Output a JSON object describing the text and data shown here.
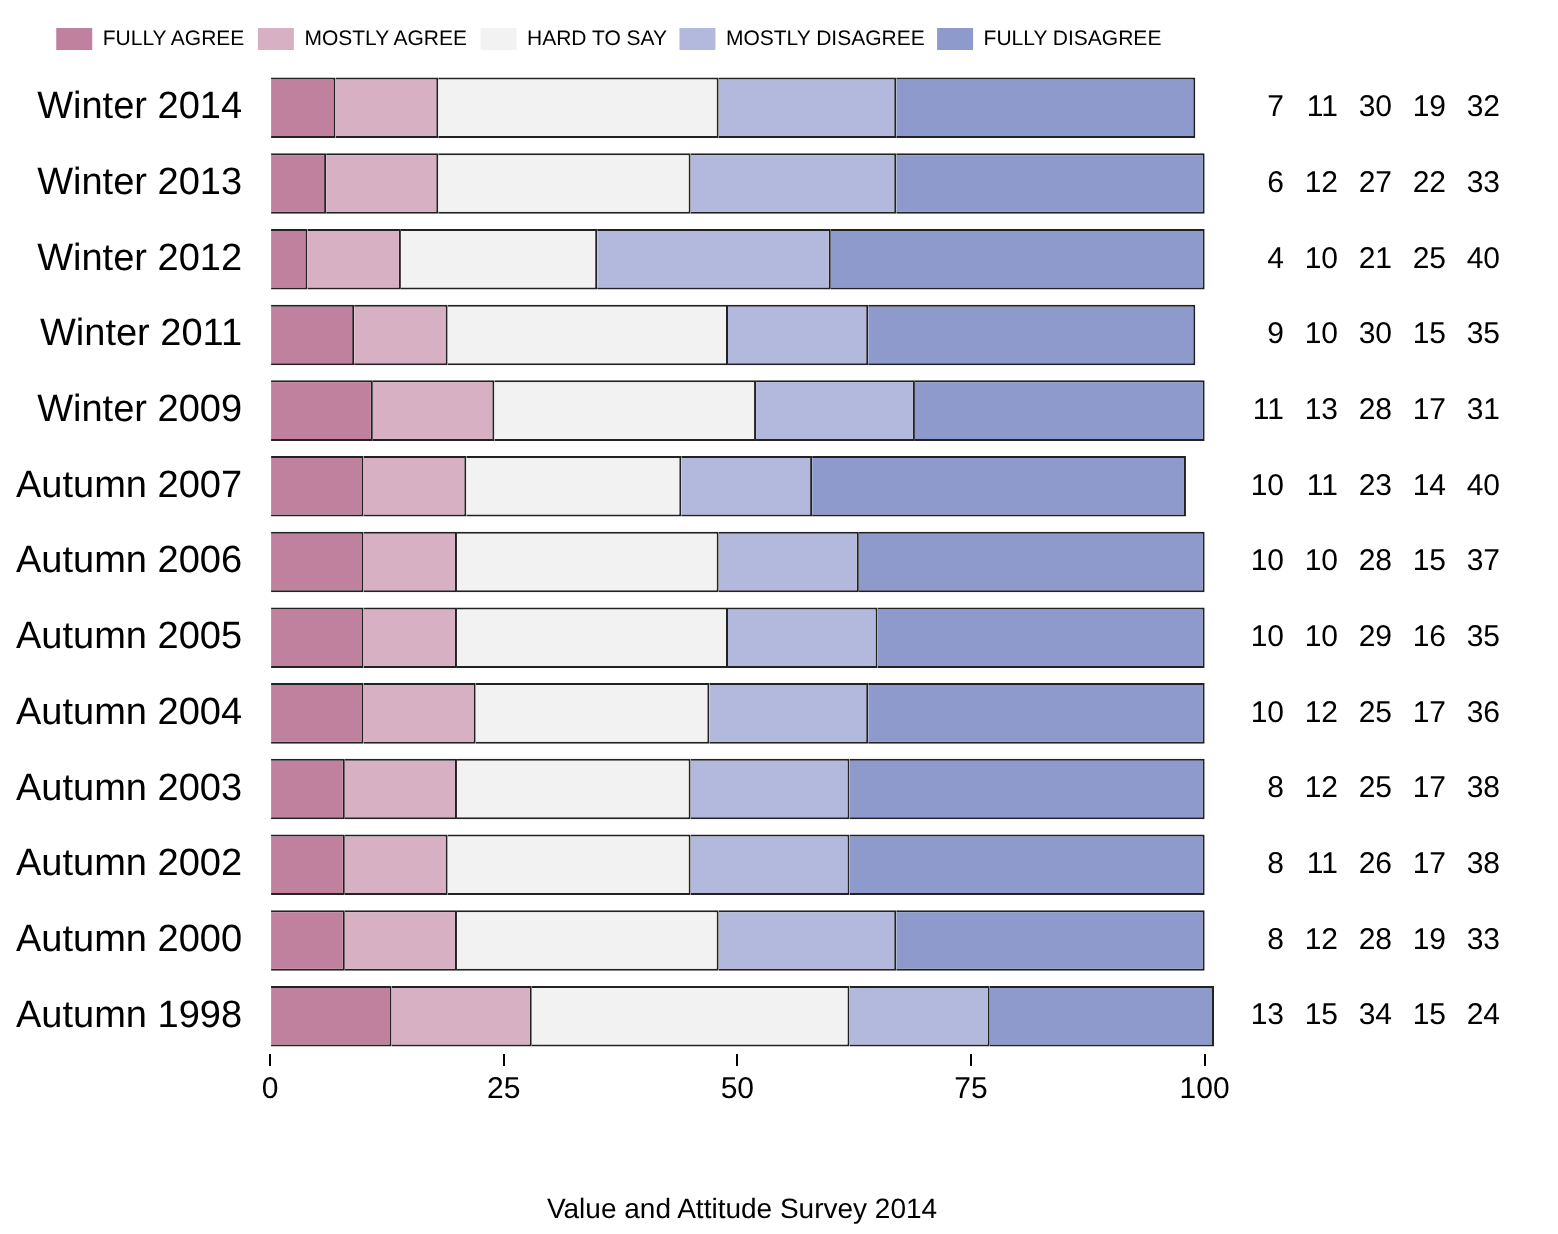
{
  "chart_data": {
    "type": "bar",
    "orientation": "horizontal",
    "stacked": true,
    "legend": "top",
    "grid": false,
    "data_labels": true,
    "categories": [
      "Winter 2014",
      "Winter 2013",
      "Winter 2012",
      "Winter 2011",
      "Winter 2009",
      "Autumn 2007",
      "Autumn 2006",
      "Autumn 2005",
      "Autumn 2004",
      "Autumn 2003",
      "Autumn 2002",
      "Autumn 2000",
      "Autumn 1998"
    ],
    "xlim": [
      0,
      101
    ],
    "xticks": [
      0,
      25,
      50,
      75,
      100
    ],
    "series": [
      {
        "name": "FULLY AGREE",
        "color": "#c0819f",
        "values": [
          7,
          6,
          4,
          9,
          11,
          10,
          10,
          10,
          10,
          8,
          8,
          8,
          13
        ]
      },
      {
        "name": "MOSTLY AGREE",
        "color": "#d8b0c4",
        "values": [
          11,
          12,
          10,
          10,
          13,
          11,
          10,
          10,
          12,
          12,
          11,
          12,
          15
        ]
      },
      {
        "name": "HARD TO SAY",
        "color": "#f2f2f2",
        "values": [
          30,
          27,
          21,
          30,
          28,
          23,
          28,
          29,
          25,
          25,
          26,
          28,
          34
        ]
      },
      {
        "name": "MOSTLY DISAGREE",
        "color": "#b3b9dc",
        "values": [
          19,
          22,
          25,
          15,
          17,
          14,
          15,
          16,
          17,
          17,
          17,
          19,
          15
        ]
      },
      {
        "name": "FULLY DISAGREE",
        "color": "#8e9acb",
        "values": [
          32,
          33,
          40,
          35,
          31,
          40,
          37,
          35,
          36,
          38,
          38,
          33,
          24
        ]
      }
    ],
    "annotations": [
      "Value and Attitude Survey 2014"
    ]
  }
}
